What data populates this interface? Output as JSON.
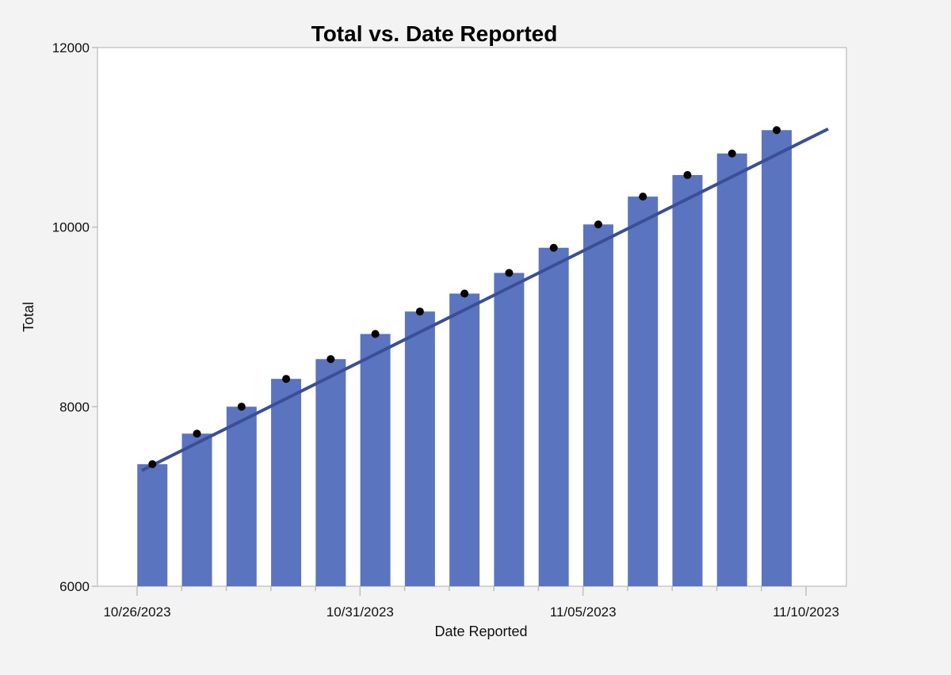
{
  "chart_data": {
    "type": "bar",
    "title": "Total vs. Date Reported",
    "xlabel": "Date Reported",
    "ylabel": "Total",
    "x_tick_labels": [
      "10/26/2023",
      "10/31/2023",
      "11/05/2023",
      "11/10/2023"
    ],
    "x_ticks": [
      "2023-10-26",
      "2023-10-27",
      "2023-10-28",
      "2023-10-29",
      "2023-10-30",
      "2023-10-31",
      "2023-11-01",
      "2023-11-02",
      "2023-11-03",
      "2023-11-04",
      "2023-11-05",
      "2023-11-06",
      "2023-11-07",
      "2023-11-08",
      "2023-11-09",
      "2023-11-10"
    ],
    "xlim": [
      "2023-10-26",
      "2023-11-10"
    ],
    "y_ticks": [
      6000,
      8000,
      10000,
      12000
    ],
    "ylim": [
      6000,
      12000
    ],
    "grid": false,
    "colors": {
      "bar": "#5b74bf",
      "trend_line": "#3a4f96",
      "points": "#000000"
    },
    "series": [
      {
        "type": "bar",
        "x": [
          "2023-10-27",
          "2023-10-28",
          "2023-10-29",
          "2023-10-30",
          "2023-10-31",
          "2023-11-01",
          "2023-11-02",
          "2023-11-03",
          "2023-11-04",
          "2023-11-05",
          "2023-11-06",
          "2023-11-07",
          "2023-11-08",
          "2023-11-09",
          "2023-11-10"
        ],
        "values": [
          7360,
          7700,
          8000,
          8310,
          8530,
          8810,
          9060,
          9260,
          9490,
          9770,
          10030,
          10340,
          10580,
          10820,
          11080
        ]
      },
      {
        "type": "scatter",
        "x": [
          "2023-10-27",
          "2023-10-28",
          "2023-10-29",
          "2023-10-30",
          "2023-10-31",
          "2023-11-01",
          "2023-11-02",
          "2023-11-03",
          "2023-11-04",
          "2023-11-05",
          "2023-11-06",
          "2023-11-07",
          "2023-11-08",
          "2023-11-09",
          "2023-11-10"
        ],
        "values": [
          7360,
          7700,
          8000,
          8310,
          8530,
          8810,
          9060,
          9260,
          9490,
          9770,
          10030,
          10340,
          10580,
          10820,
          11080
        ]
      },
      {
        "type": "line",
        "x": [
          "2023-10-26",
          "2023-11-10"
        ],
        "values": [
          7290,
          11270
        ]
      }
    ]
  }
}
